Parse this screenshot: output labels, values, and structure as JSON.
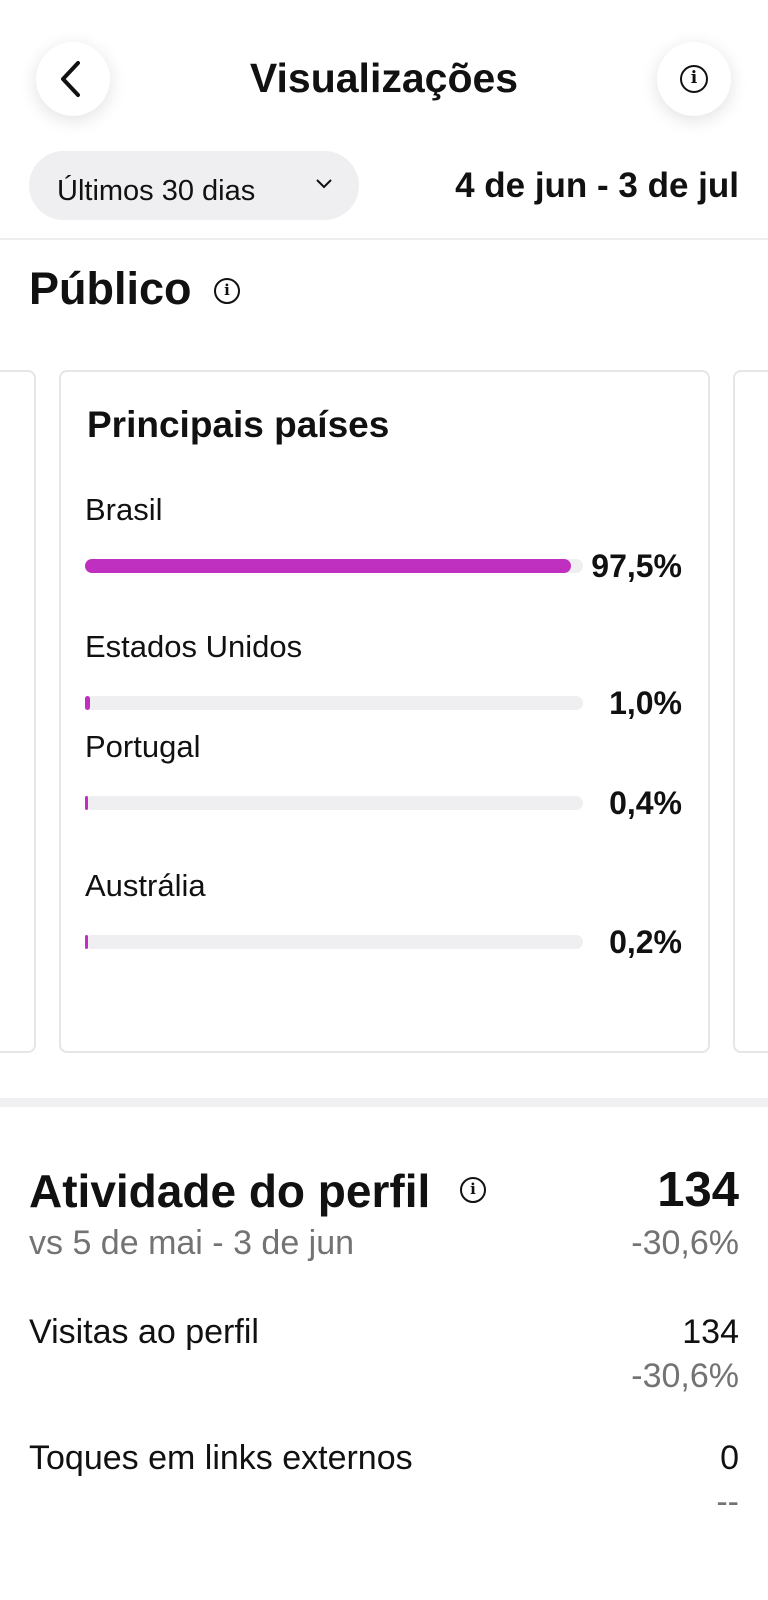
{
  "header": {
    "title": "Visualizações",
    "filter": "Últimos 30 dias",
    "date_range": "4 de jun - 3 de jul"
  },
  "audience": {
    "title": "Público"
  },
  "chart_data": {
    "type": "bar",
    "title": "Principais países",
    "categories": [
      "Brasil",
      "Estados Unidos",
      "Portugal",
      "Austrália"
    ],
    "values": [
      97.5,
      1.0,
      0.4,
      0.2
    ],
    "value_labels": [
      "97,5%",
      "1,0%",
      "0,4%",
      "0,2%"
    ],
    "xlim": [
      0,
      100
    ],
    "color": "#c030c0"
  },
  "activity": {
    "title": "Atividade do perfil",
    "total": "134",
    "total_change": "-30,6%",
    "comparison": "vs 5 de mai - 3 de jun",
    "rows": [
      {
        "label": "Visitas ao perfil",
        "value": "134",
        "change": "-30,6%"
      },
      {
        "label": "Toques em links externos",
        "value": "0",
        "change": "--"
      }
    ]
  }
}
